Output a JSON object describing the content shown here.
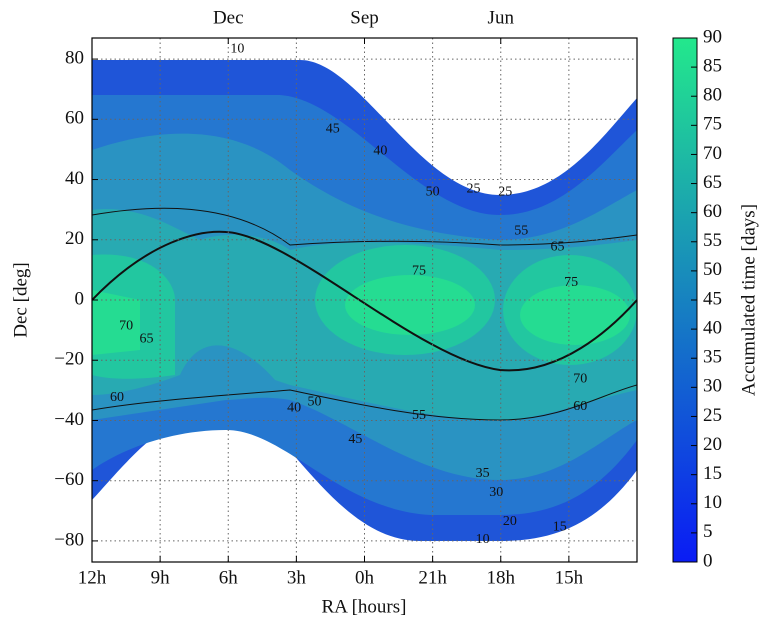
{
  "chart_data": {
    "type": "contour",
    "xlabel": "RA [hours]",
    "ylabel": "Dec [deg]",
    "xlim": [
      12,
      -12
    ],
    "ylim": [
      -87,
      87
    ],
    "xticks": [
      {
        "value": 12,
        "label": "12h"
      },
      {
        "value": 9,
        "label": "9h"
      },
      {
        "value": 6,
        "label": "6h"
      },
      {
        "value": 3,
        "label": "3h"
      },
      {
        "value": 0,
        "label": "0h"
      },
      {
        "value": -3,
        "label": "21h"
      },
      {
        "value": -6,
        "label": "18h"
      },
      {
        "value": -9,
        "label": "15h"
      }
    ],
    "yticks": [
      {
        "value": -80,
        "label": "−80"
      },
      {
        "value": -60,
        "label": "−60"
      },
      {
        "value": -40,
        "label": "−40"
      },
      {
        "value": -20,
        "label": "−20"
      },
      0,
      20,
      40,
      60,
      80
    ],
    "top_ticks": [
      {
        "value": 6,
        "label": "Dec"
      },
      {
        "value": 0,
        "label": "Sep"
      },
      {
        "value": -6,
        "label": "Jun"
      }
    ],
    "grid": true,
    "colorbar": {
      "label": "Accumulated time [days]",
      "lim": [
        0,
        90
      ],
      "ticks": [
        0,
        5,
        10,
        15,
        20,
        25,
        30,
        35,
        40,
        45,
        50,
        55,
        60,
        65,
        70,
        75,
        80,
        85,
        90
      ],
      "colors": [
        "#0a1cf5",
        "#23e88c"
      ]
    },
    "contour_labels": [
      {
        "level": 75,
        "ra": -2.4,
        "dec": 9.5
      },
      {
        "level": 75,
        "ra": -9.1,
        "dec": 5.8
      },
      {
        "level": 70,
        "ra": 10.5,
        "dec": -8.8
      },
      {
        "level": 65,
        "ra": 9.6,
        "dec": -13
      },
      {
        "level": 70,
        "ra": -9.5,
        "dec": -26.4
      },
      {
        "level": 65,
        "ra": -8.5,
        "dec": 17.5
      },
      {
        "level": 60,
        "ra": 10.9,
        "dec": -32.4
      },
      {
        "level": 60,
        "ra": -9.5,
        "dec": -35.4
      },
      {
        "level": 55,
        "ra": -6.9,
        "dec": 22.8
      },
      {
        "level": 55,
        "ra": -2.4,
        "dec": -38.4
      },
      {
        "level": 50,
        "ra": 2.2,
        "dec": -34
      },
      {
        "level": 50,
        "ra": -3,
        "dec": 35.8
      },
      {
        "level": 45,
        "ra": 1.4,
        "dec": 56.7
      },
      {
        "level": 45,
        "ra": 0.4,
        "dec": -46.4
      },
      {
        "level": 40,
        "ra": -0.7,
        "dec": 49.4
      },
      {
        "level": 40,
        "ra": 3.1,
        "dec": -36
      },
      {
        "level": 35,
        "ra": -5.2,
        "dec": -57.7
      },
      {
        "level": 30,
        "ra": -5.8,
        "dec": -64
      },
      {
        "level": 25,
        "ra": -4.8,
        "dec": 36.8
      },
      {
        "level": 25,
        "ra": -6.2,
        "dec": 35.8
      },
      {
        "level": 20,
        "ra": -6.4,
        "dec": -73.7
      },
      {
        "level": 15,
        "ra": -8.6,
        "dec": -75.5
      },
      {
        "level": 10,
        "ra": 5.6,
        "dec": 83.3
      },
      {
        "level": 10,
        "ra": -5.2,
        "dec": -79.7
      }
    ]
  }
}
